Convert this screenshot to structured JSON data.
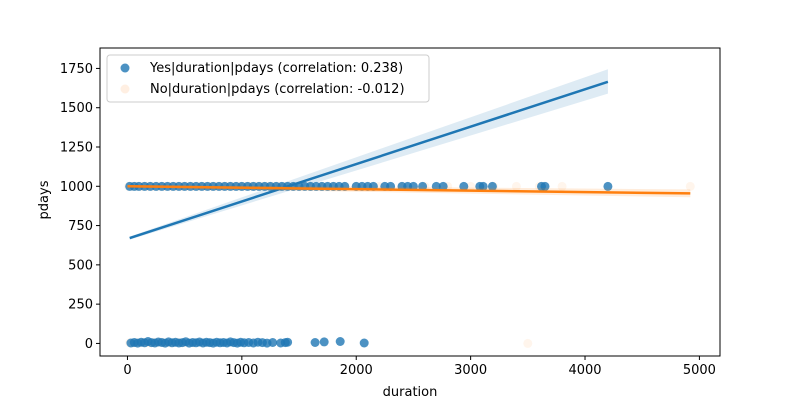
{
  "chart_data": {
    "type": "scatter",
    "xlabel": "duration",
    "ylabel": "pdays",
    "xlim": [
      -240,
      5180
    ],
    "ylim": [
      -80,
      1880
    ],
    "xticks": [
      0,
      1000,
      2000,
      3000,
      4000,
      5000
    ],
    "yticks": [
      0,
      250,
      500,
      750,
      1000,
      1250,
      1500,
      1750
    ],
    "legend_position": "upper-left",
    "series": [
      {
        "name": "Yes|duration|pdays (correlation: 0.238)",
        "color": "#1f77b4",
        "opacity": 0.8,
        "points": [
          [
            20,
            999
          ],
          [
            60,
            999
          ],
          [
            100,
            999
          ],
          [
            150,
            999
          ],
          [
            200,
            999
          ],
          [
            250,
            999
          ],
          [
            300,
            999
          ],
          [
            350,
            999
          ],
          [
            400,
            999
          ],
          [
            450,
            999
          ],
          [
            500,
            999
          ],
          [
            550,
            999
          ],
          [
            600,
            999
          ],
          [
            650,
            999
          ],
          [
            700,
            999
          ],
          [
            750,
            999
          ],
          [
            800,
            999
          ],
          [
            850,
            999
          ],
          [
            900,
            999
          ],
          [
            950,
            999
          ],
          [
            1000,
            999
          ],
          [
            1050,
            999
          ],
          [
            1100,
            999
          ],
          [
            1150,
            999
          ],
          [
            1200,
            999
          ],
          [
            1250,
            999
          ],
          [
            1300,
            999
          ],
          [
            1350,
            999
          ],
          [
            1400,
            999
          ],
          [
            1450,
            999
          ],
          [
            1500,
            999
          ],
          [
            1550,
            999
          ],
          [
            1600,
            999
          ],
          [
            1650,
            999
          ],
          [
            1700,
            999
          ],
          [
            1750,
            999
          ],
          [
            1800,
            999
          ],
          [
            1850,
            999
          ],
          [
            1900,
            999
          ],
          [
            2000,
            999
          ],
          [
            2050,
            999
          ],
          [
            2100,
            999
          ],
          [
            2150,
            999
          ],
          [
            2250,
            999
          ],
          [
            2300,
            999
          ],
          [
            2400,
            999
          ],
          [
            2450,
            999
          ],
          [
            2500,
            999
          ],
          [
            2580,
            999
          ],
          [
            2700,
            999
          ],
          [
            2760,
            999
          ],
          [
            2940,
            999
          ],
          [
            3080,
            999
          ],
          [
            3110,
            999
          ],
          [
            3190,
            999
          ],
          [
            3620,
            999
          ],
          [
            3650,
            999
          ],
          [
            4200,
            999
          ],
          [
            30,
            3
          ],
          [
            60,
            6
          ],
          [
            90,
            2
          ],
          [
            120,
            8
          ],
          [
            150,
            4
          ],
          [
            180,
            12
          ],
          [
            210,
            5
          ],
          [
            240,
            3
          ],
          [
            270,
            9
          ],
          [
            300,
            6
          ],
          [
            330,
            2
          ],
          [
            360,
            10
          ],
          [
            390,
            4
          ],
          [
            420,
            7
          ],
          [
            450,
            3
          ],
          [
            480,
            5
          ],
          [
            510,
            11
          ],
          [
            540,
            2
          ],
          [
            570,
            6
          ],
          [
            600,
            4
          ],
          [
            630,
            9
          ],
          [
            660,
            3
          ],
          [
            690,
            7
          ],
          [
            720,
            5
          ],
          [
            750,
            2
          ],
          [
            780,
            8
          ],
          [
            810,
            4
          ],
          [
            840,
            6
          ],
          [
            870,
            3
          ],
          [
            900,
            10
          ],
          [
            930,
            5
          ],
          [
            960,
            2
          ],
          [
            990,
            7
          ],
          [
            1020,
            4
          ],
          [
            1060,
            6
          ],
          [
            1100,
            3
          ],
          [
            1140,
            8
          ],
          [
            1180,
            5
          ],
          [
            1220,
            2
          ],
          [
            1270,
            6
          ],
          [
            1340,
            3
          ],
          [
            1380,
            5
          ],
          [
            1400,
            8
          ],
          [
            1640,
            6
          ],
          [
            1720,
            10
          ],
          [
            1860,
            12
          ],
          [
            2070,
            3
          ]
        ],
        "regression": {
          "x1": 20,
          "y1": 670,
          "x2": 4200,
          "y2": 1665,
          "ci_end": [
            1590,
            1745
          ]
        }
      },
      {
        "name": "No|duration|pdays (correlation: -0.012)",
        "color": "#ff7f0e",
        "opacity": 0.08,
        "points": [
          [
            10,
            999
          ],
          [
            40,
            999
          ],
          [
            70,
            999
          ],
          [
            100,
            999
          ],
          [
            130,
            999
          ],
          [
            160,
            999
          ],
          [
            190,
            999
          ],
          [
            220,
            999
          ],
          [
            250,
            999
          ],
          [
            280,
            999
          ],
          [
            310,
            999
          ],
          [
            340,
            999
          ],
          [
            370,
            999
          ],
          [
            400,
            999
          ],
          [
            430,
            999
          ],
          [
            460,
            999
          ],
          [
            490,
            999
          ],
          [
            520,
            999
          ],
          [
            550,
            999
          ],
          [
            580,
            999
          ],
          [
            610,
            999
          ],
          [
            640,
            999
          ],
          [
            670,
            999
          ],
          [
            700,
            999
          ],
          [
            730,
            999
          ],
          [
            760,
            999
          ],
          [
            790,
            999
          ],
          [
            820,
            999
          ],
          [
            850,
            999
          ],
          [
            880,
            999
          ],
          [
            910,
            999
          ],
          [
            940,
            999
          ],
          [
            970,
            999
          ],
          [
            1000,
            999
          ],
          [
            1030,
            999
          ],
          [
            1060,
            999
          ],
          [
            1090,
            999
          ],
          [
            1120,
            999
          ],
          [
            1150,
            999
          ],
          [
            1180,
            999
          ],
          [
            1210,
            999
          ],
          [
            1240,
            999
          ],
          [
            1270,
            999
          ],
          [
            1300,
            999
          ],
          [
            1330,
            999
          ],
          [
            1380,
            999
          ],
          [
            1450,
            999
          ],
          [
            1520,
            999
          ],
          [
            1600,
            999
          ],
          [
            1700,
            999
          ],
          [
            1800,
            999
          ],
          [
            1900,
            999
          ],
          [
            2000,
            999
          ],
          [
            2200,
            999
          ],
          [
            2400,
            999
          ],
          [
            2600,
            999
          ],
          [
            2800,
            999
          ],
          [
            3000,
            999
          ],
          [
            3200,
            999
          ],
          [
            3400,
            999
          ],
          [
            3600,
            999
          ],
          [
            3800,
            999
          ],
          [
            4920,
            999
          ],
          [
            20,
            4
          ],
          [
            50,
            2
          ],
          [
            80,
            6
          ],
          [
            110,
            3
          ],
          [
            140,
            8
          ],
          [
            170,
            5
          ],
          [
            200,
            2
          ],
          [
            230,
            7
          ],
          [
            260,
            4
          ],
          [
            290,
            9
          ],
          [
            320,
            3
          ],
          [
            350,
            6
          ],
          [
            380,
            2
          ],
          [
            410,
            5
          ],
          [
            440,
            8
          ],
          [
            470,
            3
          ],
          [
            500,
            6
          ],
          [
            540,
            4
          ],
          [
            580,
            2
          ],
          [
            620,
            7
          ],
          [
            660,
            3
          ],
          [
            700,
            5
          ],
          [
            3500,
            0
          ]
        ],
        "regression": {
          "x1": 0,
          "y1": 1000,
          "x2": 4920,
          "y2": 955,
          "ci_end": [
            930,
            980
          ]
        }
      }
    ]
  }
}
